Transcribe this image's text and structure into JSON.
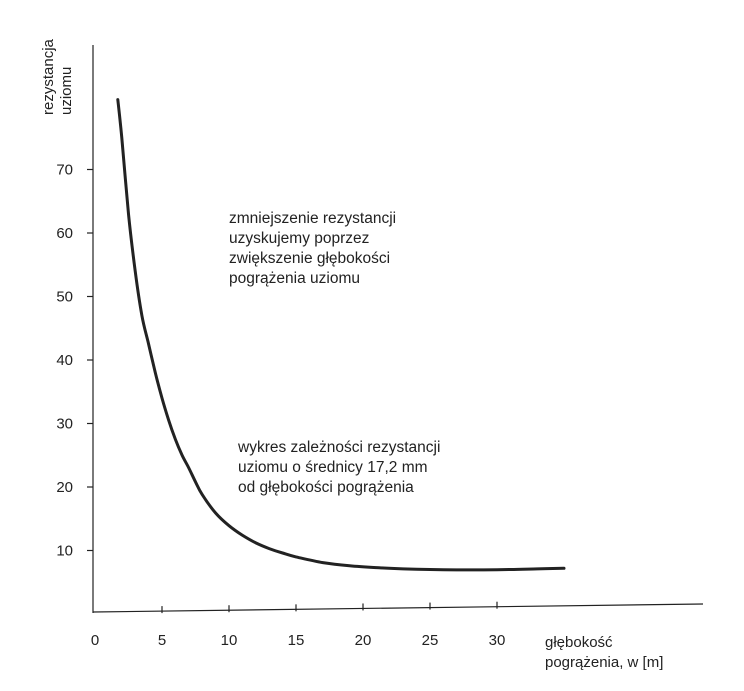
{
  "chart_data": {
    "type": "line",
    "ylabel_lines": [
      "rezystancja",
      "uziomu"
    ],
    "xlabel_lines": [
      "głębokość",
      "pogrążenia, w [m]"
    ],
    "xlim": [
      0,
      35
    ],
    "ylim": [
      0,
      80
    ],
    "x_ticks": [
      0,
      5,
      10,
      15,
      20,
      25,
      30
    ],
    "y_ticks": [
      10,
      20,
      30,
      40,
      50,
      60,
      70
    ],
    "grid": false,
    "series": [
      {
        "color": "#222222",
        "x": [
          1.7,
          2.0,
          2.5,
          3.0,
          3.5,
          4.0,
          4.5,
          5.0,
          5.5,
          6.0,
          6.5,
          7.0,
          7.5,
          8.0,
          9.0,
          10.0,
          11.0,
          12.0,
          13.0,
          14.0,
          15.0,
          17.0,
          19.0,
          21.0,
          23.0,
          25.0,
          27.0,
          29.0,
          31.0,
          33.0,
          35.0
        ],
        "y": [
          81.0,
          75.0,
          63.0,
          54.0,
          47.0,
          42.5,
          38.0,
          34.0,
          30.5,
          27.5,
          25.0,
          23.0,
          20.8,
          18.8,
          15.9,
          13.9,
          12.4,
          11.2,
          10.3,
          9.6,
          9.0,
          8.1,
          7.6,
          7.3,
          7.1,
          7.0,
          6.95,
          6.95,
          7.0,
          7.1,
          7.2
        ]
      }
    ]
  },
  "annotations": [
    {
      "lines": [
        "zmniejszenie rezystancji",
        "uzyskujemy poprzez",
        "zwiększenie głębokości",
        "pogrążenia uziomu"
      ]
    },
    {
      "lines": [
        "wykres zależności rezystancji",
        "uziomu o średnicy 17,2 mm",
        "od głębokości pogrążenia"
      ]
    }
  ]
}
